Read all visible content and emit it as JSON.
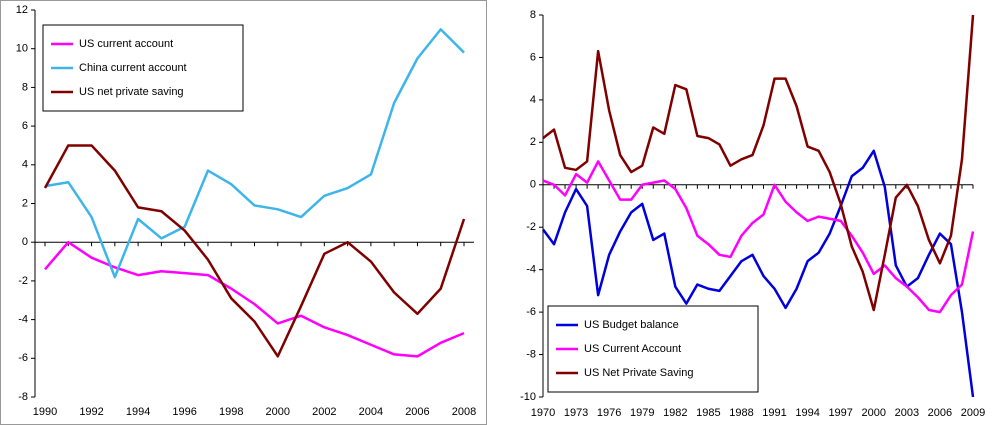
{
  "chart_data": [
    {
      "type": "line",
      "x": [
        1990,
        1991,
        1992,
        1993,
        1994,
        1995,
        1996,
        1997,
        1998,
        1999,
        2000,
        2001,
        2002,
        2003,
        2004,
        2005,
        2006,
        2007,
        2008
      ],
      "xlim": [
        1990,
        2008
      ],
      "xticks": [
        1990,
        1992,
        1994,
        1996,
        1998,
        2000,
        2002,
        2004,
        2006,
        2008
      ],
      "ylim": [
        -8,
        12
      ],
      "yticks": [
        -8,
        -6,
        -4,
        -2,
        0,
        2,
        4,
        6,
        8,
        10,
        12
      ],
      "legend": "upper left",
      "series": [
        {
          "name": "US current account",
          "color": "#ff00ff",
          "values": [
            -1.4,
            0.0,
            -0.8,
            -1.3,
            -1.7,
            -1.5,
            -1.6,
            -1.7,
            -2.4,
            -3.2,
            -4.2,
            -3.8,
            -4.4,
            -4.8,
            -5.3,
            -5.8,
            -5.9,
            -5.2,
            -4.7
          ]
        },
        {
          "name": "China current account",
          "color": "#3db5ea",
          "values": [
            2.9,
            3.1,
            1.3,
            -1.8,
            1.2,
            0.2,
            0.8,
            3.7,
            3.0,
            1.9,
            1.7,
            1.3,
            2.4,
            2.8,
            3.5,
            7.2,
            9.5,
            11.0,
            9.8
          ]
        },
        {
          "name": "US net private saving",
          "color": "#800000",
          "values": [
            2.8,
            5.0,
            5.0,
            3.7,
            1.8,
            1.6,
            0.6,
            -0.9,
            -2.9,
            -4.1,
            -5.9,
            -3.3,
            -0.6,
            0.0,
            -1.0,
            -2.6,
            -3.7,
            -2.4,
            1.2
          ]
        }
      ]
    },
    {
      "type": "line",
      "x": [
        1970,
        1971,
        1972,
        1973,
        1974,
        1975,
        1976,
        1977,
        1978,
        1979,
        1980,
        1981,
        1982,
        1983,
        1984,
        1985,
        1986,
        1987,
        1988,
        1989,
        1990,
        1991,
        1992,
        1993,
        1994,
        1995,
        1996,
        1997,
        1998,
        1999,
        2000,
        2001,
        2002,
        2003,
        2004,
        2005,
        2006,
        2007,
        2008,
        2009
      ],
      "xlim": [
        1970,
        2009
      ],
      "xticks": [
        1970,
        1973,
        1976,
        1979,
        1982,
        1985,
        1988,
        1991,
        1994,
        1997,
        2000,
        2003,
        2006,
        2009
      ],
      "ylim": [
        -10,
        8
      ],
      "yticks": [
        -10,
        -8,
        -6,
        -4,
        -2,
        0,
        2,
        4,
        6,
        8
      ],
      "legend": "lower left",
      "series": [
        {
          "name": "US Budget balance",
          "color": "#0000dd",
          "values": [
            -2.1,
            -2.8,
            -1.3,
            -0.2,
            -1.0,
            -5.2,
            -3.3,
            -2.2,
            -1.3,
            -0.9,
            -2.6,
            -2.3,
            -4.8,
            -5.6,
            -4.7,
            -4.9,
            -5.0,
            -4.3,
            -3.6,
            -3.3,
            -4.3,
            -4.9,
            -5.8,
            -4.9,
            -3.6,
            -3.2,
            -2.3,
            -1.0,
            0.4,
            0.8,
            1.6,
            -0.1,
            -3.8,
            -4.8,
            -4.4,
            -3.3,
            -2.3,
            -2.8,
            -6.0,
            -10.0
          ]
        },
        {
          "name": "US Current Account",
          "color": "#ff00ff",
          "values": [
            0.2,
            0.0,
            -0.5,
            0.5,
            0.1,
            1.1,
            0.2,
            -0.7,
            -0.7,
            0.0,
            0.1,
            0.2,
            -0.2,
            -1.1,
            -2.4,
            -2.8,
            -3.3,
            -3.4,
            -2.4,
            -1.8,
            -1.4,
            0.0,
            -0.8,
            -1.3,
            -1.7,
            -1.5,
            -1.6,
            -1.7,
            -2.4,
            -3.2,
            -4.2,
            -3.8,
            -4.4,
            -4.8,
            -5.3,
            -5.9,
            -6.0,
            -5.2,
            -4.7,
            -2.2
          ]
        },
        {
          "name": "US Net Private Saving",
          "color": "#800000",
          "values": [
            2.2,
            2.6,
            0.8,
            0.7,
            1.1,
            6.3,
            3.5,
            1.4,
            0.6,
            0.9,
            2.7,
            2.4,
            4.7,
            4.5,
            2.3,
            2.2,
            1.9,
            0.9,
            1.2,
            1.4,
            2.8,
            5.0,
            5.0,
            3.7,
            1.8,
            1.6,
            0.6,
            -0.9,
            -2.9,
            -4.1,
            -5.9,
            -3.3,
            -0.6,
            0.0,
            -1.0,
            -2.6,
            -3.7,
            -2.4,
            1.2,
            8.0
          ]
        }
      ]
    }
  ]
}
